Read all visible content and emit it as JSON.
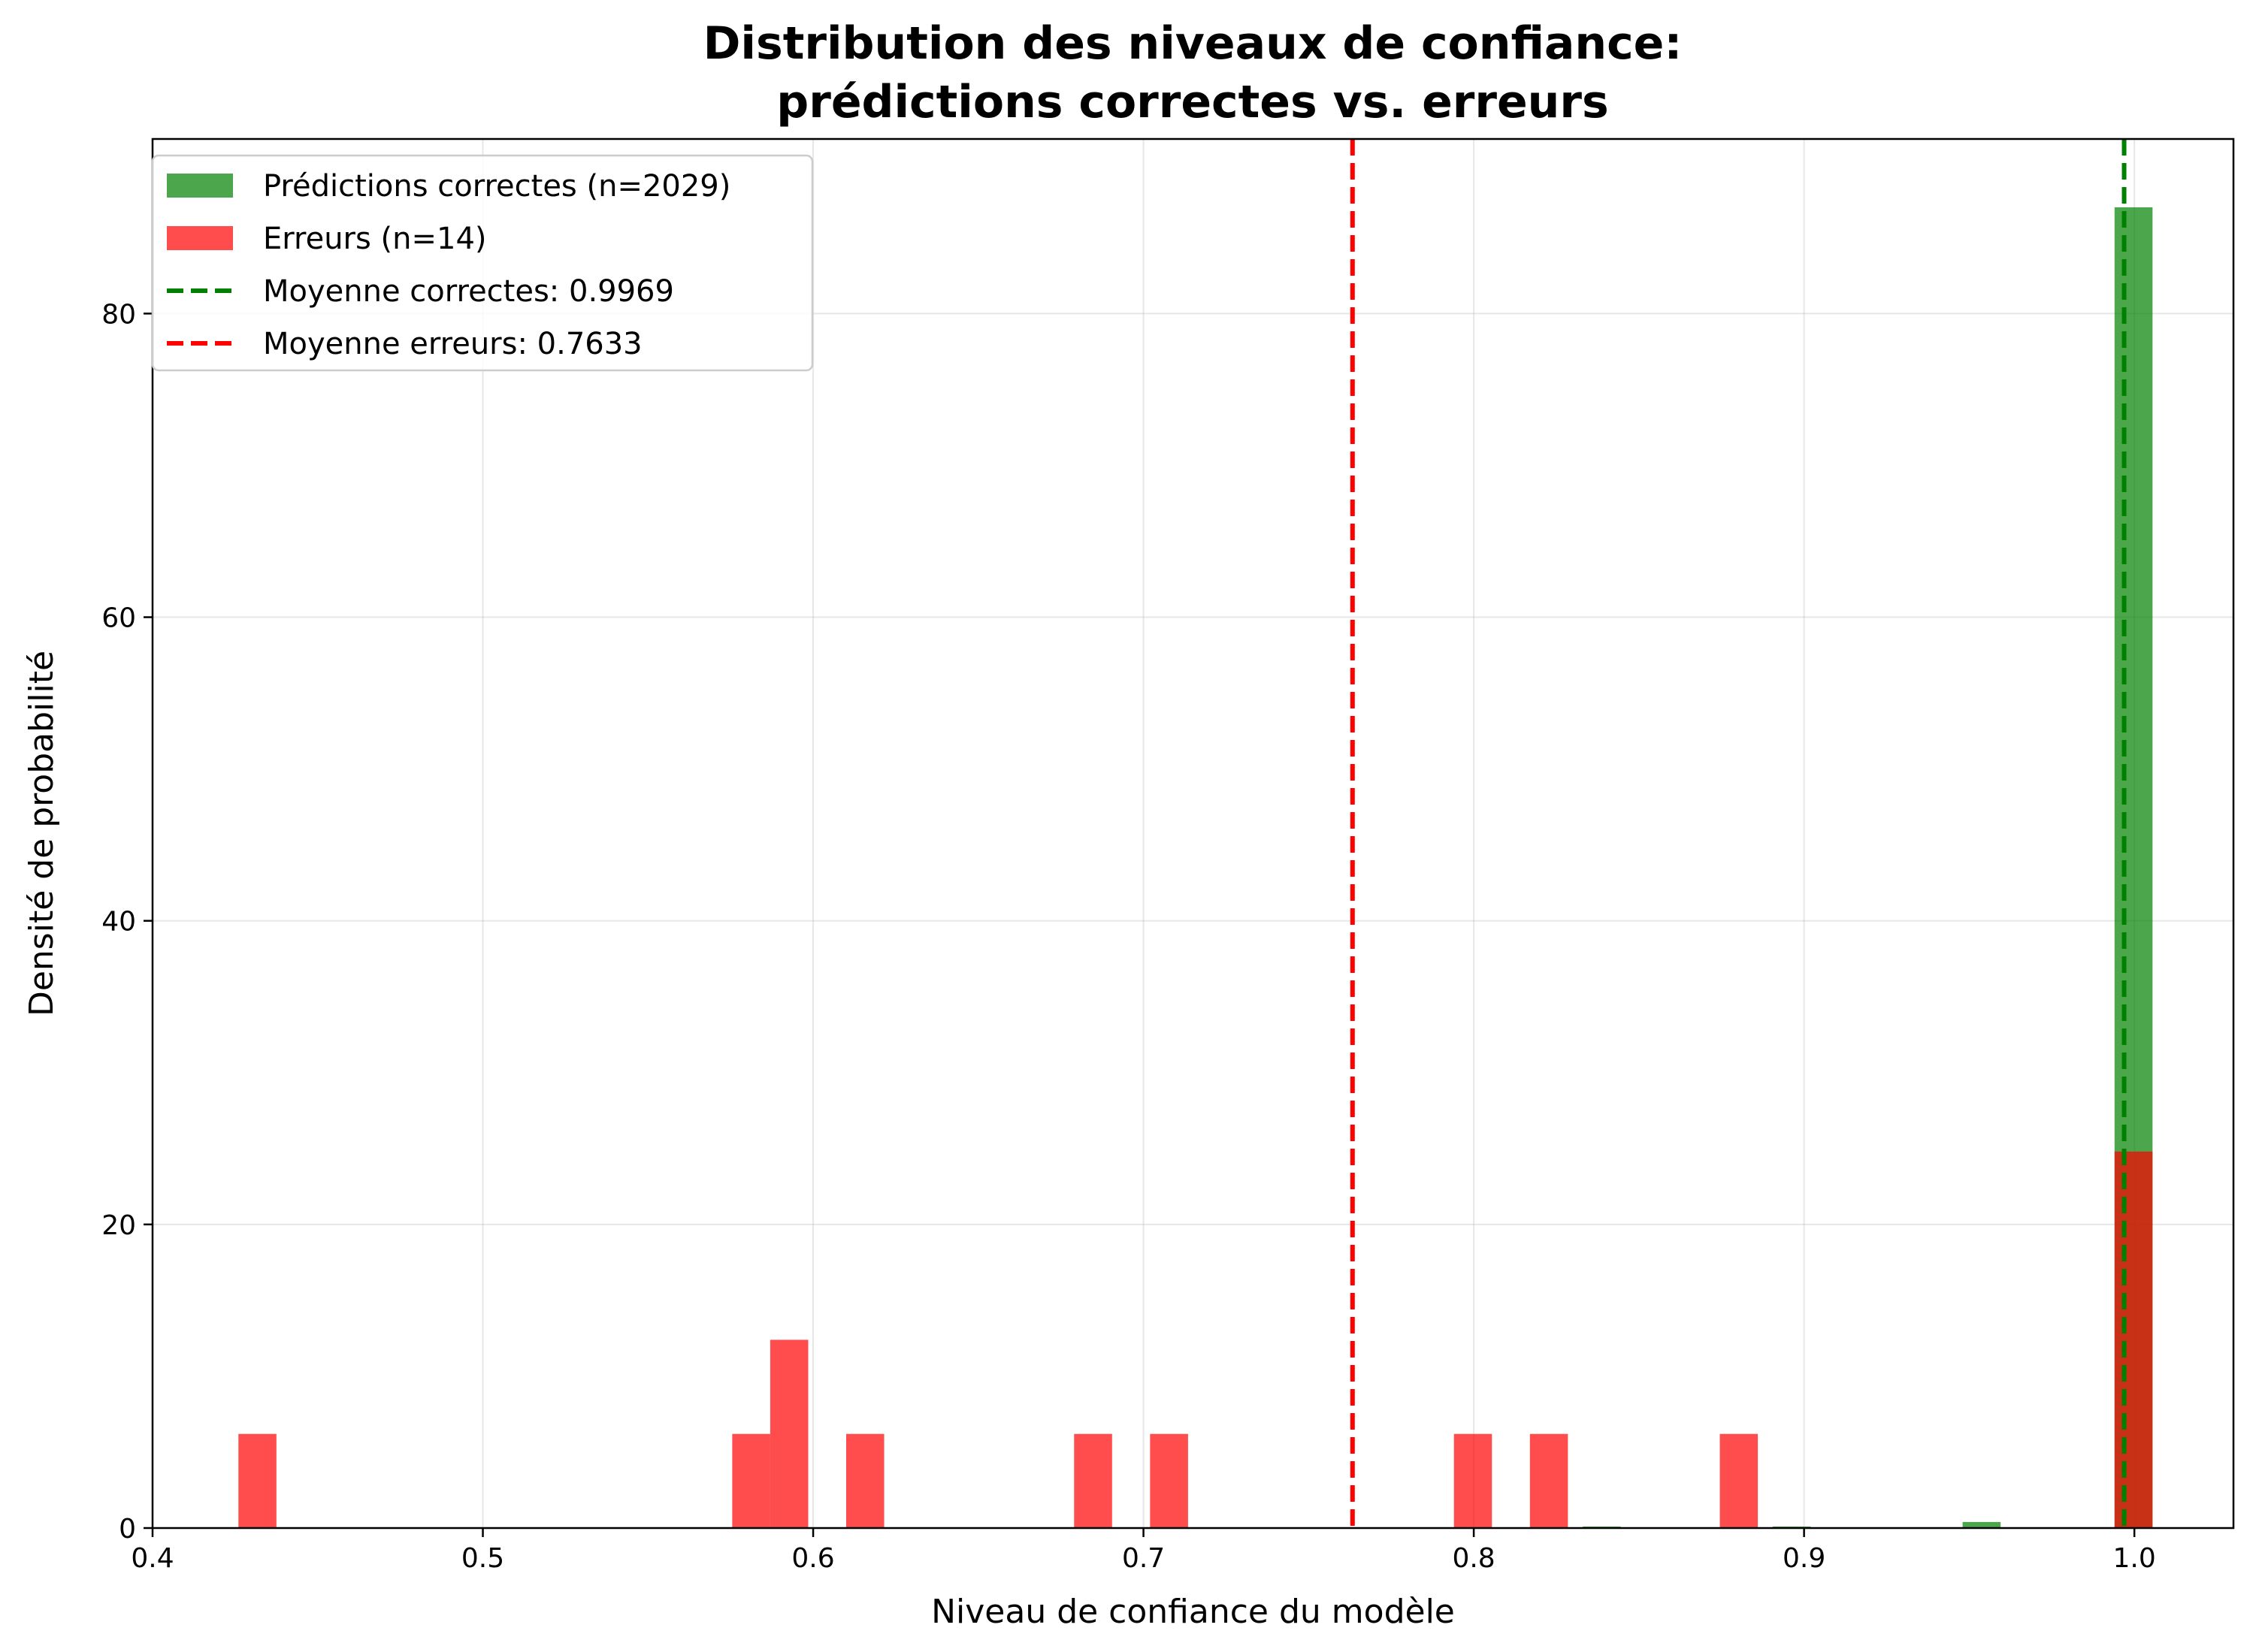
{
  "chart_data": {
    "type": "bar",
    "title_lines": [
      "Distribution des niveaux de confiance:",
      "prédictions correctes vs. erreurs"
    ],
    "xlabel": "Niveau de confiance du modèle",
    "ylabel": "Densité de probabilité",
    "xlim": [
      0.4,
      1.03
    ],
    "ylim": [
      0,
      91.5
    ],
    "xticks": [
      0.4,
      0.5,
      0.6,
      0.7,
      0.8,
      0.9,
      1.0
    ],
    "xtick_labels": [
      "0.4",
      "0.5",
      "0.6",
      "0.7",
      "0.8",
      "0.9",
      "1.0"
    ],
    "yticks": [
      0,
      20,
      40,
      60,
      80
    ],
    "ytick_labels": [
      "0",
      "20",
      "40",
      "60",
      "80"
    ],
    "grid": true,
    "legend_position": "top-left",
    "bin_width": 0.0115,
    "series": [
      {
        "name": "Prédictions correctes (n=2029)",
        "kind": "histogram",
        "color": "#008000",
        "opacity": 0.7,
        "bins": [
          {
            "x": 0.833,
            "value": 0.1
          },
          {
            "x": 0.8905,
            "value": 0.1
          },
          {
            "x": 0.948,
            "value": 0.4
          },
          {
            "x": 0.994,
            "value": 87.0
          }
        ]
      },
      {
        "name": "Erreurs (n=14)",
        "kind": "histogram",
        "color": "#ff0000",
        "opacity": 0.7,
        "bins": [
          {
            "x": 0.426,
            "value": 6.2
          },
          {
            "x": 0.5755,
            "value": 6.2
          },
          {
            "x": 0.587,
            "value": 12.4
          },
          {
            "x": 0.61,
            "value": 6.2
          },
          {
            "x": 0.679,
            "value": 6.2
          },
          {
            "x": 0.702,
            "value": 6.2
          },
          {
            "x": 0.794,
            "value": 6.2
          },
          {
            "x": 0.817,
            "value": 6.2
          },
          {
            "x": 0.8745,
            "value": 6.2
          },
          {
            "x": 0.994,
            "value": 24.8
          }
        ]
      }
    ],
    "mean_lines": [
      {
        "name": "Moyenne correctes: 0.9969",
        "x": 0.9969,
        "color": "#008000"
      },
      {
        "name": "Moyenne erreurs: 0.7633",
        "x": 0.7633,
        "color": "#ff0000"
      }
    ]
  }
}
